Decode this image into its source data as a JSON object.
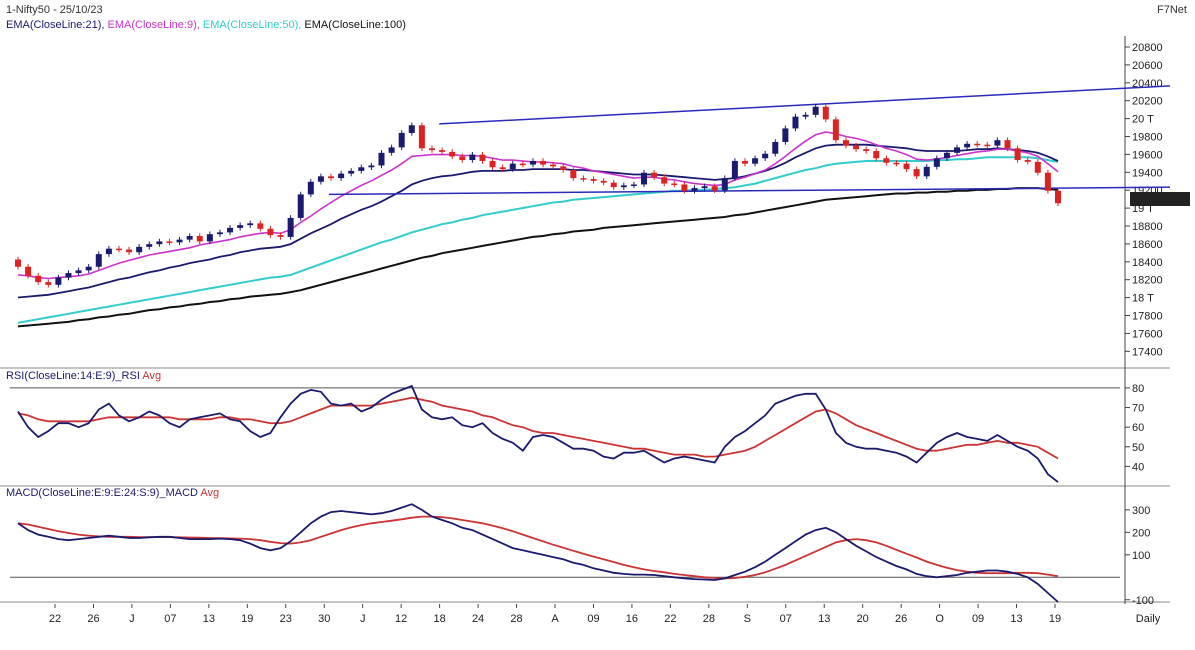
{
  "header": {
    "title": "1-Nifty50 - 25/10/23",
    "brand": "F7Net",
    "legend": [
      {
        "label": "EMA(CloseLine:21),",
        "color": "#1a1a6e"
      },
      {
        "label": "EMA(CloseLine:9),",
        "color": "#cc33cc"
      },
      {
        "label": "EMA(CloseLine:50),",
        "color": "#33cccc"
      },
      {
        "label": "EMA(CloseLine:100)",
        "color": "#111111"
      }
    ]
  },
  "colors": {
    "up": "#1a1a6e",
    "down": "#dd2222",
    "ema21": "#1a1a6e",
    "ema9": "#cc33cc",
    "ema50": "#33cccc",
    "ema100": "#111111",
    "trend": "#2b2bbb",
    "rsi": "#1a1a6e",
    "avg": "#cc3333"
  },
  "chart_data": [
    {
      "type": "candlestick",
      "ylim": [
        17300,
        20950
      ],
      "yticks": [
        "20800",
        "20600",
        "20400",
        "20200",
        "20 T",
        "19800",
        "19600",
        "19400",
        "19200",
        "19 T",
        "18800",
        "18600",
        "18400",
        "18200",
        "18 T",
        "17800",
        "17600",
        "17400"
      ],
      "last_price_label": "19122.1",
      "xlabels": [
        "22",
        "26",
        "J",
        "07",
        "13",
        "19",
        "23",
        "30",
        "J",
        "12",
        "18",
        "24",
        "28",
        "A",
        "09",
        "16",
        "22",
        "28",
        "S",
        "07",
        "13",
        "20",
        "26",
        "O",
        "09",
        "13",
        "19"
      ],
      "x_unit_label": "Daily",
      "close": [
        18420,
        18320,
        18250,
        18220,
        18300,
        18350,
        18380,
        18420,
        18560,
        18620,
        18610,
        18580,
        18640,
        18670,
        18700,
        18690,
        18720,
        18760,
        18700,
        18780,
        18800,
        18850,
        18880,
        18900,
        18840,
        18770,
        18750,
        18960,
        19220,
        19360,
        19420,
        19400,
        19450,
        19480,
        19520,
        19540,
        19680,
        19740,
        19900,
        19985,
        19730,
        19710,
        19690,
        19640,
        19600,
        19660,
        19590,
        19520,
        19500,
        19560,
        19550,
        19590,
        19550,
        19530,
        19490,
        19400,
        19390,
        19370,
        19350,
        19300,
        19320,
        19330,
        19460,
        19410,
        19340,
        19330,
        19260,
        19290,
        19310,
        19265,
        19400,
        19590,
        19560,
        19620,
        19670,
        19800,
        19950,
        20080,
        20100,
        20190,
        20050,
        19820,
        19760,
        19720,
        19700,
        19620,
        19570,
        19560,
        19500,
        19420,
        19525,
        19620,
        19680,
        19740,
        19780,
        19770,
        19760,
        19820,
        19730,
        19600,
        19580,
        19460,
        19260,
        19122
      ],
      "ema9": [
        18330,
        18320,
        18300,
        18290,
        18300,
        18310,
        18320,
        18340,
        18380,
        18420,
        18460,
        18490,
        18520,
        18550,
        18570,
        18590,
        18610,
        18630,
        18660,
        18680,
        18700,
        18720,
        18750,
        18770,
        18790,
        18800,
        18790,
        18830,
        18910,
        18980,
        19060,
        19130,
        19200,
        19260,
        19320,
        19370,
        19430,
        19490,
        19560,
        19640,
        19650,
        19660,
        19660,
        19660,
        19650,
        19650,
        19640,
        19620,
        19600,
        19600,
        19590,
        19580,
        19580,
        19570,
        19560,
        19530,
        19510,
        19480,
        19460,
        19440,
        19420,
        19400,
        19410,
        19410,
        19390,
        19380,
        19360,
        19340,
        19330,
        19320,
        19330,
        19380,
        19410,
        19450,
        19490,
        19560,
        19640,
        19730,
        19810,
        19880,
        19910,
        19890,
        19860,
        19840,
        19810,
        19770,
        19730,
        19700,
        19660,
        19610,
        19600,
        19610,
        19630,
        19650,
        19670,
        19690,
        19700,
        19720,
        19720,
        19700,
        19680,
        19640,
        19560,
        19470
      ],
      "ema21": [
        18080,
        18090,
        18100,
        18110,
        18130,
        18150,
        18170,
        18190,
        18220,
        18250,
        18280,
        18300,
        18330,
        18360,
        18380,
        18410,
        18430,
        18460,
        18480,
        18500,
        18530,
        18550,
        18580,
        18600,
        18620,
        18630,
        18640,
        18670,
        18730,
        18790,
        18840,
        18890,
        18950,
        19000,
        19050,
        19090,
        19140,
        19200,
        19260,
        19330,
        19370,
        19400,
        19420,
        19430,
        19450,
        19470,
        19480,
        19480,
        19480,
        19490,
        19490,
        19500,
        19500,
        19500,
        19500,
        19490,
        19490,
        19480,
        19470,
        19460,
        19450,
        19440,
        19440,
        19440,
        19430,
        19420,
        19410,
        19400,
        19390,
        19380,
        19390,
        19400,
        19420,
        19450,
        19480,
        19520,
        19570,
        19630,
        19680,
        19730,
        19760,
        19770,
        19770,
        19770,
        19770,
        19760,
        19750,
        19740,
        19730,
        19710,
        19700,
        19700,
        19700,
        19700,
        19710,
        19720,
        19720,
        19730,
        19720,
        19710,
        19700,
        19680,
        19640,
        19590
      ],
      "ema50": [
        17800,
        17820,
        17840,
        17860,
        17880,
        17900,
        17920,
        17940,
        17960,
        17980,
        18000,
        18020,
        18040,
        18060,
        18080,
        18100,
        18120,
        18140,
        18160,
        18180,
        18200,
        18220,
        18240,
        18260,
        18280,
        18300,
        18310,
        18330,
        18370,
        18410,
        18450,
        18490,
        18530,
        18570,
        18610,
        18650,
        18690,
        18720,
        18760,
        18800,
        18830,
        18860,
        18890,
        18910,
        18940,
        18960,
        18990,
        19010,
        19030,
        19050,
        19070,
        19090,
        19110,
        19130,
        19140,
        19160,
        19170,
        19180,
        19190,
        19200,
        19210,
        19220,
        19230,
        19240,
        19250,
        19260,
        19260,
        19270,
        19270,
        19280,
        19290,
        19300,
        19320,
        19340,
        19370,
        19400,
        19430,
        19460,
        19490,
        19510,
        19540,
        19560,
        19570,
        19580,
        19590,
        19590,
        19590,
        19590,
        19590,
        19590,
        19590,
        19600,
        19600,
        19610,
        19610,
        19620,
        19630,
        19630,
        19630,
        19630,
        19630,
        19620,
        19600,
        19580
      ],
      "ema100": [
        17760,
        17770,
        17780,
        17790,
        17800,
        17810,
        17830,
        17840,
        17860,
        17870,
        17890,
        17900,
        17920,
        17940,
        17950,
        17970,
        17980,
        18000,
        18010,
        18030,
        18040,
        18060,
        18070,
        18090,
        18100,
        18110,
        18120,
        18140,
        18160,
        18190,
        18220,
        18250,
        18280,
        18310,
        18340,
        18370,
        18400,
        18430,
        18460,
        18490,
        18520,
        18540,
        18570,
        18590,
        18610,
        18630,
        18650,
        18670,
        18690,
        18710,
        18730,
        18750,
        18760,
        18780,
        18790,
        18810,
        18820,
        18830,
        18850,
        18860,
        18870,
        18880,
        18890,
        18900,
        18910,
        18920,
        18930,
        18940,
        18950,
        18960,
        18970,
        18990,
        19000,
        19020,
        19040,
        19060,
        19080,
        19100,
        19120,
        19140,
        19160,
        19170,
        19180,
        19190,
        19200,
        19210,
        19220,
        19230,
        19230,
        19240,
        19240,
        19250,
        19250,
        19260,
        19260,
        19270,
        19270,
        19280,
        19280,
        19290,
        19290,
        19290,
        19280,
        19270
      ],
      "trendlines": [
        {
          "from": [
            0.37,
            20000
          ],
          "to": [
            1.0,
            20420
          ]
        },
        {
          "from": [
            0.275,
            19220
          ],
          "to": [
            1.0,
            19300
          ]
        }
      ]
    },
    {
      "type": "line",
      "title": "RSI(CloseLine:14:E:9)_RSI",
      "avg_label": "Avg",
      "ylim": [
        30,
        82
      ],
      "yticks": [
        "80",
        "70",
        "60",
        "50",
        "40"
      ],
      "rsi": [
        68,
        60,
        55,
        58,
        62,
        62,
        60,
        62,
        69,
        72,
        66,
        63,
        65,
        68,
        66,
        62,
        60,
        64,
        65,
        66,
        67,
        64,
        63,
        58,
        55,
        57,
        65,
        72,
        77,
        79,
        78,
        72,
        71,
        72,
        68,
        70,
        74,
        77,
        79,
        81,
        69,
        65,
        64,
        65,
        61,
        60,
        62,
        57,
        54,
        52,
        48,
        55,
        56,
        55,
        52,
        49,
        49,
        48,
        45,
        44,
        47,
        47,
        48,
        45,
        42,
        44,
        45,
        44,
        43,
        42,
        50,
        55,
        58,
        62,
        66,
        72,
        74,
        76,
        77,
        77,
        69,
        57,
        52,
        50,
        49,
        49,
        48,
        47,
        45,
        42,
        47,
        52,
        55,
        57,
        55,
        54,
        53,
        56,
        53,
        50,
        48,
        44,
        36,
        32
      ],
      "avg": [
        67,
        66,
        64,
        63,
        63,
        63,
        63,
        63,
        64,
        65,
        65,
        65,
        65,
        65,
        65,
        65,
        64,
        64,
        64,
        64,
        65,
        65,
        64,
        64,
        63,
        62,
        62,
        63,
        65,
        67,
        69,
        71,
        71,
        71,
        71,
        71,
        72,
        73,
        74,
        75,
        74,
        73,
        71,
        70,
        69,
        68,
        66,
        65,
        63,
        61,
        60,
        58,
        57,
        57,
        56,
        55,
        54,
        53,
        52,
        51,
        50,
        49,
        49,
        48,
        47,
        46,
        46,
        46,
        45,
        45,
        46,
        47,
        48,
        50,
        53,
        56,
        59,
        62,
        65,
        68,
        69,
        67,
        64,
        61,
        59,
        57,
        55,
        53,
        51,
        49,
        48,
        48,
        49,
        50,
        51,
        51,
        52,
        53,
        52,
        52,
        51,
        50,
        47,
        44
      ]
    },
    {
      "type": "line",
      "title": "MACD(CloseLine:E:9:E:24:S:9)_MACD",
      "avg_label": "Avg",
      "ylim": [
        -110,
        335
      ],
      "yticks": [
        "300",
        "200",
        "100",
        "-100"
      ],
      "macd": [
        240,
        210,
        190,
        180,
        170,
        165,
        170,
        175,
        180,
        185,
        180,
        175,
        175,
        178,
        180,
        180,
        175,
        170,
        170,
        170,
        172,
        170,
        165,
        150,
        130,
        120,
        130,
        160,
        200,
        240,
        270,
        290,
        295,
        290,
        285,
        280,
        285,
        295,
        310,
        325,
        300,
        270,
        255,
        240,
        220,
        210,
        190,
        170,
        150,
        130,
        120,
        110,
        100,
        90,
        80,
        65,
        55,
        40,
        30,
        20,
        15,
        12,
        12,
        10,
        5,
        0,
        -5,
        -8,
        -10,
        -12,
        -5,
        10,
        25,
        45,
        70,
        100,
        130,
        160,
        190,
        210,
        220,
        200,
        170,
        140,
        115,
        90,
        70,
        50,
        35,
        15,
        5,
        0,
        5,
        10,
        20,
        25,
        30,
        30,
        25,
        15,
        0,
        -30,
        -70,
        -110
      ],
      "avg": [
        240,
        235,
        225,
        215,
        205,
        197,
        190,
        185,
        182,
        180,
        180,
        180,
        179,
        179,
        179,
        179,
        178,
        177,
        176,
        175,
        174,
        173,
        172,
        170,
        165,
        158,
        152,
        150,
        155,
        165,
        180,
        195,
        210,
        222,
        232,
        240,
        246,
        252,
        258,
        265,
        270,
        270,
        268,
        262,
        255,
        248,
        240,
        230,
        218,
        205,
        190,
        175,
        160,
        145,
        132,
        118,
        105,
        92,
        80,
        68,
        55,
        45,
        35,
        28,
        22,
        15,
        10,
        5,
        0,
        -3,
        -5,
        -3,
        2,
        10,
        22,
        38,
        55,
        75,
        95,
        115,
        135,
        155,
        165,
        170,
        165,
        155,
        140,
        122,
        105,
        88,
        70,
        55,
        42,
        32,
        25,
        20,
        18,
        18,
        18,
        20,
        20,
        18,
        12,
        5
      ]
    }
  ]
}
